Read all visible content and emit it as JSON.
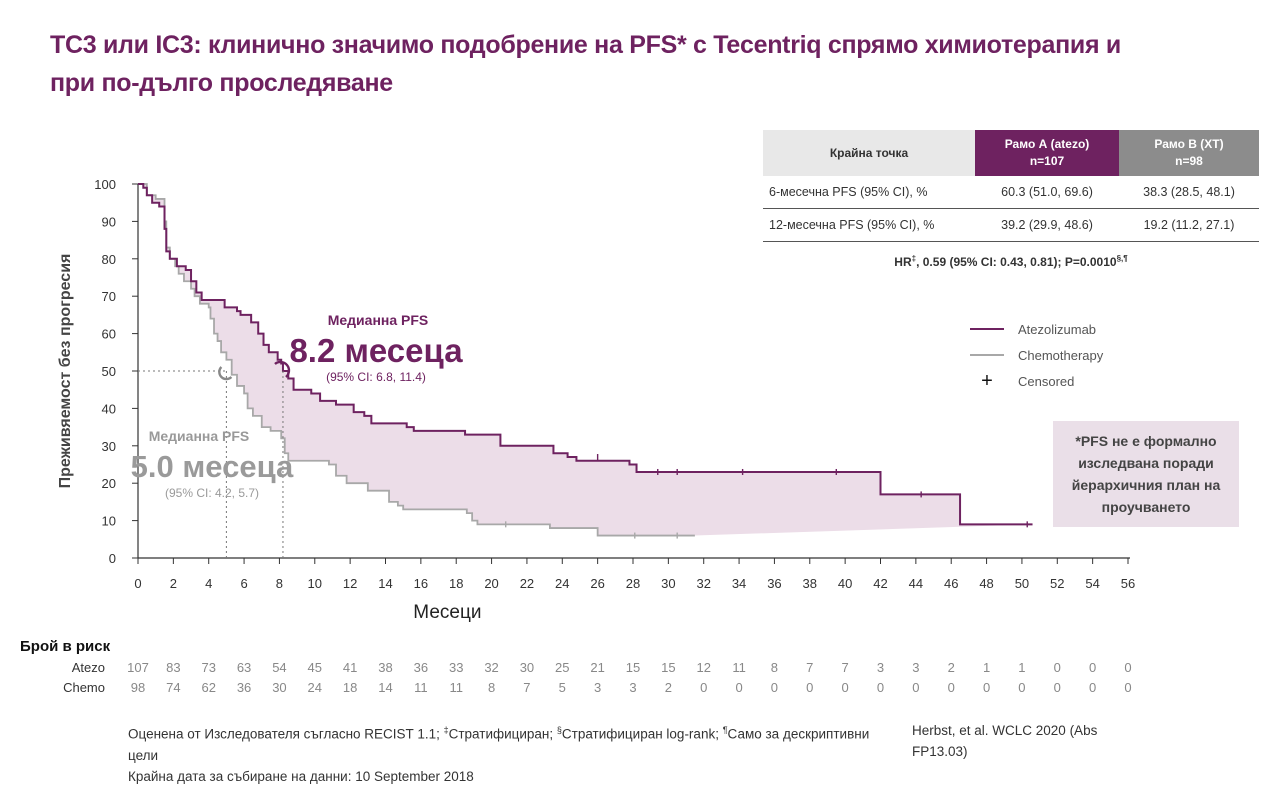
{
  "title": "ТС3 или IC3: клинично значимо подобрение на PFS* с Tecentriq спрямо химиотерапия и при по-дълго проследяване",
  "colors": {
    "atezo": "#6e2260",
    "chemo": "#a8a8a8",
    "band": "#ecdde8",
    "title": "#6e2260"
  },
  "chart_data": {
    "type": "line",
    "subtype": "kaplan-meier",
    "xlabel": "Месеци",
    "ylabel": "Преживяемост без прогресия",
    "xlim": [
      0,
      56
    ],
    "ylim": [
      0,
      100
    ],
    "x_ticks": [
      0,
      2,
      4,
      6,
      8,
      10,
      12,
      14,
      16,
      18,
      20,
      22,
      24,
      26,
      28,
      30,
      32,
      34,
      36,
      38,
      40,
      42,
      44,
      46,
      48,
      50,
      52,
      54,
      56
    ],
    "y_ticks": [
      0,
      10,
      20,
      30,
      40,
      50,
      60,
      70,
      80,
      90,
      100
    ],
    "legend_position": "right",
    "series": [
      {
        "name": "Atezolizumab",
        "points": [
          [
            0,
            100
          ],
          [
            0.3,
            99
          ],
          [
            0.5,
            97
          ],
          [
            0.8,
            95
          ],
          [
            1.2,
            94
          ],
          [
            1.5,
            92
          ],
          [
            1.5,
            88
          ],
          [
            1.6,
            82
          ],
          [
            1.8,
            80
          ],
          [
            2.2,
            78
          ],
          [
            2.7,
            77
          ],
          [
            3,
            74
          ],
          [
            3.3,
            71
          ],
          [
            3.6,
            69
          ],
          [
            4.5,
            69
          ],
          [
            4.9,
            67
          ],
          [
            5.6,
            66
          ],
          [
            5.8,
            65
          ],
          [
            6.4,
            63
          ],
          [
            6.8,
            60
          ],
          [
            7.1,
            57
          ],
          [
            7.4,
            55
          ],
          [
            7.9,
            53
          ],
          [
            8.1,
            52
          ],
          [
            8.2,
            50
          ],
          [
            8.5,
            48
          ],
          [
            8.8,
            45
          ],
          [
            9.8,
            44
          ],
          [
            10.3,
            42
          ],
          [
            11.2,
            41
          ],
          [
            12.2,
            39
          ],
          [
            12.8,
            38
          ],
          [
            13.2,
            36
          ],
          [
            15.2,
            35
          ],
          [
            15.6,
            34
          ],
          [
            18.5,
            33
          ],
          [
            20.5,
            30
          ],
          [
            23.5,
            28
          ],
          [
            24.3,
            27
          ],
          [
            24.8,
            26
          ],
          [
            27.8,
            25
          ],
          [
            28.2,
            23
          ],
          [
            42,
            23
          ],
          [
            42,
            17
          ],
          [
            46.5,
            17
          ],
          [
            46.5,
            9
          ],
          [
            50.6,
            9
          ]
        ],
        "censored": [
          [
            26,
            27
          ],
          [
            29.4,
            23
          ],
          [
            30.5,
            23
          ],
          [
            34.2,
            23
          ],
          [
            39.5,
            23
          ],
          [
            44.3,
            17
          ],
          [
            50.3,
            9
          ]
        ]
      },
      {
        "name": "Chemotherapy",
        "points": [
          [
            0,
            100
          ],
          [
            0.5,
            97
          ],
          [
            1,
            96
          ],
          [
            1.5,
            90
          ],
          [
            1.6,
            83
          ],
          [
            1.8,
            80
          ],
          [
            2.1,
            78
          ],
          [
            2.3,
            76
          ],
          [
            2.6,
            74
          ],
          [
            3.0,
            72
          ],
          [
            3.2,
            70
          ],
          [
            3.5,
            68
          ],
          [
            4.0,
            67
          ],
          [
            4.1,
            64
          ],
          [
            4.3,
            60
          ],
          [
            4.5,
            58
          ],
          [
            4.7,
            55
          ],
          [
            5.0,
            53
          ],
          [
            5.3,
            49
          ],
          [
            5.6,
            46
          ],
          [
            6.0,
            44
          ],
          [
            6.2,
            40
          ],
          [
            6.5,
            38
          ],
          [
            7.0,
            35
          ],
          [
            7.5,
            34
          ],
          [
            8.1,
            32
          ],
          [
            8.3,
            28
          ],
          [
            8.5,
            26
          ],
          [
            10.8,
            25
          ],
          [
            11.2,
            22
          ],
          [
            11.8,
            20
          ],
          [
            13.0,
            18
          ],
          [
            14.2,
            15
          ],
          [
            14.7,
            14
          ],
          [
            15.0,
            13
          ],
          [
            18.6,
            12
          ],
          [
            18.9,
            10
          ],
          [
            19.2,
            9
          ],
          [
            21.7,
            9
          ],
          [
            23.3,
            8
          ],
          [
            25.8,
            8
          ],
          [
            26,
            6
          ],
          [
            31.5,
            6
          ]
        ],
        "censored": [
          [
            20.8,
            9
          ],
          [
            28.1,
            6
          ],
          [
            30.5,
            6
          ]
        ]
      }
    ],
    "annotations": [
      {
        "label": "Медианна PFS",
        "value": "8.2 месеца",
        "ci": "(95% CI: 6.8, 11.4)",
        "x": 8.2,
        "y": 50
      },
      {
        "label": "Медианна PFS",
        "value": "5.0 месеца",
        "ci": "(95% CI: 4.2, 5.7)",
        "x": 5.0,
        "y": 50
      }
    ]
  },
  "median_atezo": {
    "label": "Медианна PFS",
    "value": "8.2 месеца",
    "ci": "(95% CI: 6.8, 11.4)"
  },
  "median_chemo": {
    "label": "Медианна PFS",
    "value": "5.0 месеца",
    "ci": "(95% CI: 4.2, 5.7)"
  },
  "table": {
    "col_endpoint": "Крайна точка",
    "col_a": "Рамо А (atezo)",
    "col_a_n": "n=107",
    "col_b": "Рамо В (ХТ)",
    "col_b_n": "n=98",
    "rows": [
      {
        "endpoint": "6-месечна PFS (95% CI), %",
        "a": "60.3 (51.0, 69.6)",
        "b": "38.3 (28.5, 48.1)"
      },
      {
        "endpoint": "12-месечна PFS (95% CI), %",
        "a": "39.2 (29.9, 48.6)",
        "b": "19.2 (11.2, 27.1)"
      }
    ]
  },
  "hr": {
    "prefix": "HR",
    "sup1": "‡",
    "text": ", 0.59 (95% CI: 0.43, 0.81); P=0.0010",
    "sup2": "§,¶"
  },
  "legend": {
    "atezo": "Atezolizumab",
    "chemo": "Chemotherapy",
    "censored": "Censored",
    "censored_symbol": "+"
  },
  "note": "*PFS не е формално изследвана поради йерархичния план на проучването",
  "risk": {
    "title": "Брой в риск",
    "atezo_label": "Atezo",
    "chemo_label": "Chemo",
    "atezo": [
      "107",
      "83",
      "73",
      "63",
      "54",
      "45",
      "41",
      "38",
      "36",
      "33",
      "32",
      "30",
      "25",
      "21",
      "15",
      "15",
      "12",
      "11",
      "8",
      "7",
      "7",
      "3",
      "3",
      "2",
      "1",
      "1",
      "0",
      "0",
      "0"
    ],
    "chemo": [
      "98",
      "74",
      "62",
      "36",
      "30",
      "24",
      "18",
      "14",
      "11",
      "11",
      "8",
      "7",
      "5",
      "3",
      "3",
      "2",
      "0",
      "0",
      "0",
      "0",
      "0",
      "0",
      "0",
      "0",
      "0",
      "0",
      "0",
      "0",
      "0"
    ]
  },
  "footnote": {
    "line1_a": "Оценена от Изследователя съгласно RECIST 1.1; ",
    "sup1": "‡",
    "line1_b": "Стратифициран; ",
    "sup2": "§",
    "line1_c": "Стратифициран log-rank; ",
    "sup3": "¶",
    "line1_d": "Само за дескриптивни цели",
    "line2": "Крайна дата за събиране на данни: 10 September 2018",
    "ref": "Herbst, et al. WCLC 2020 (Abs FP13.03)"
  }
}
